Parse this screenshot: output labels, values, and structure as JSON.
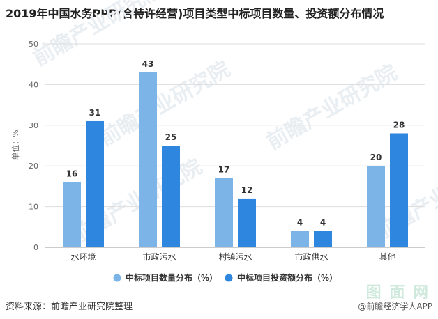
{
  "title": "2019年中国水务PPP(合特许经营)项目类型中标项目数量、投资额分布情况",
  "source": "资料来源：前瞻产业研究院整理",
  "brand": "@前瞻经济学人APP",
  "watermark": "前瞻产业研究院",
  "corner_logo": "图 面 网",
  "colors": {
    "series1": "#7db4e8",
    "series2": "#2e86de",
    "grid": "#dddddd",
    "axis": "#999999"
  },
  "chart_data": {
    "type": "bar",
    "categories": [
      "水环境",
      "市政污水",
      "村镇污水",
      "市政供水",
      "其他"
    ],
    "series": [
      {
        "name": "中标项目数量分布（%）",
        "values": [
          16,
          43,
          17,
          4,
          20
        ]
      },
      {
        "name": "中标项目投资额分布（%）",
        "values": [
          31,
          25,
          12,
          4,
          28
        ]
      }
    ],
    "ylabel": "单位：%",
    "ylim": [
      0,
      50
    ],
    "yticks": [
      0,
      10,
      20,
      30,
      40,
      50
    ],
    "grid": true,
    "legend": "bottom"
  }
}
